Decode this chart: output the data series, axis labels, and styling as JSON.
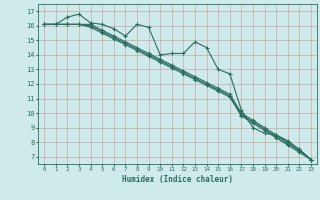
{
  "xlabel": "Humidex (Indice chaleur)",
  "bg_color": "#ceeaea",
  "grid_color": "#c8a8a8",
  "line_color": "#2a6e60",
  "xlim": [
    -0.5,
    23.5
  ],
  "ylim": [
    6.5,
    17.5
  ],
  "xticks": [
    0,
    1,
    2,
    3,
    4,
    5,
    6,
    7,
    8,
    9,
    10,
    11,
    12,
    13,
    14,
    15,
    16,
    17,
    18,
    19,
    20,
    21,
    22,
    23
  ],
  "yticks": [
    7,
    8,
    9,
    10,
    11,
    12,
    13,
    14,
    15,
    16,
    17
  ],
  "line1": [
    16.1,
    16.1,
    16.6,
    16.8,
    16.2,
    16.1,
    15.8,
    15.3,
    16.1,
    15.9,
    14.0,
    14.1,
    14.1,
    14.9,
    14.5,
    13.0,
    12.7,
    10.2,
    9.0,
    8.6,
    8.5,
    8.1,
    7.5,
    6.8
  ],
  "line2": [
    16.1,
    16.1,
    16.1,
    16.1,
    16.1,
    15.7,
    15.3,
    14.9,
    14.5,
    14.1,
    13.7,
    13.3,
    12.9,
    12.5,
    12.1,
    11.7,
    11.3,
    10.0,
    9.5,
    9.0,
    8.5,
    8.0,
    7.5,
    6.8
  ],
  "line3": [
    16.1,
    16.1,
    16.1,
    16.1,
    16.0,
    15.6,
    15.2,
    14.8,
    14.4,
    14.0,
    13.6,
    13.2,
    12.8,
    12.4,
    12.0,
    11.6,
    11.2,
    9.9,
    9.4,
    8.9,
    8.4,
    7.9,
    7.4,
    6.8
  ],
  "line4": [
    16.1,
    16.1,
    16.1,
    16.1,
    15.9,
    15.5,
    15.1,
    14.7,
    14.3,
    13.9,
    13.5,
    13.1,
    12.7,
    12.3,
    11.9,
    11.5,
    11.1,
    9.8,
    9.3,
    8.8,
    8.3,
    7.8,
    7.3,
    6.8
  ]
}
